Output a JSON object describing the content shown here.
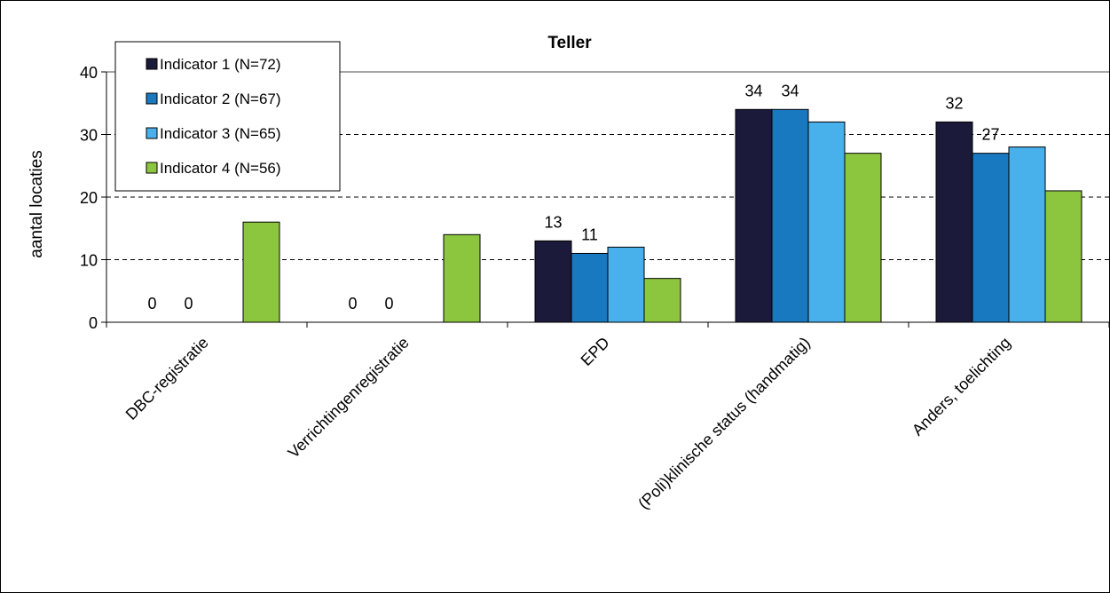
{
  "chart_data": {
    "type": "bar",
    "title": "Teller",
    "ylabel": "aantal locaties",
    "xlabel": "",
    "ylim": [
      0,
      40
    ],
    "yticks": [
      0,
      10,
      20,
      30,
      40
    ],
    "grid": "dashed horizontal at 10, 20, 30; solid at 40",
    "legend_position": "top-left",
    "categories": [
      "DBC-registratie",
      "Verrichtingenregistratie",
      "EPD",
      "(Poli)klinische status (handmatig)",
      "Anders, toelichting"
    ],
    "series": [
      {
        "name": "Indicator 1 (N=72)",
        "color": "#1c1a3a",
        "values": [
          0,
          0,
          13,
          34,
          32
        ],
        "labels": [
          "0",
          "0",
          "13",
          "34",
          "32"
        ]
      },
      {
        "name": "Indicator 2 (N=67)",
        "color": "#1878c0",
        "values": [
          0,
          0,
          11,
          34,
          27
        ],
        "labels": [
          "0",
          "0",
          "11",
          "34",
          "27"
        ]
      },
      {
        "name": "Indicator 3 (N=65)",
        "color": "#48b0ea",
        "values": [
          0,
          0,
          12,
          32,
          28
        ],
        "labels": [
          "",
          "",
          "",
          "",
          ""
        ]
      },
      {
        "name": "Indicator 4 (N=56)",
        "color": "#8cc63f",
        "values": [
          16,
          14,
          7,
          27,
          21
        ],
        "labels": [
          "",
          "",
          "",
          "",
          ""
        ]
      }
    ]
  }
}
